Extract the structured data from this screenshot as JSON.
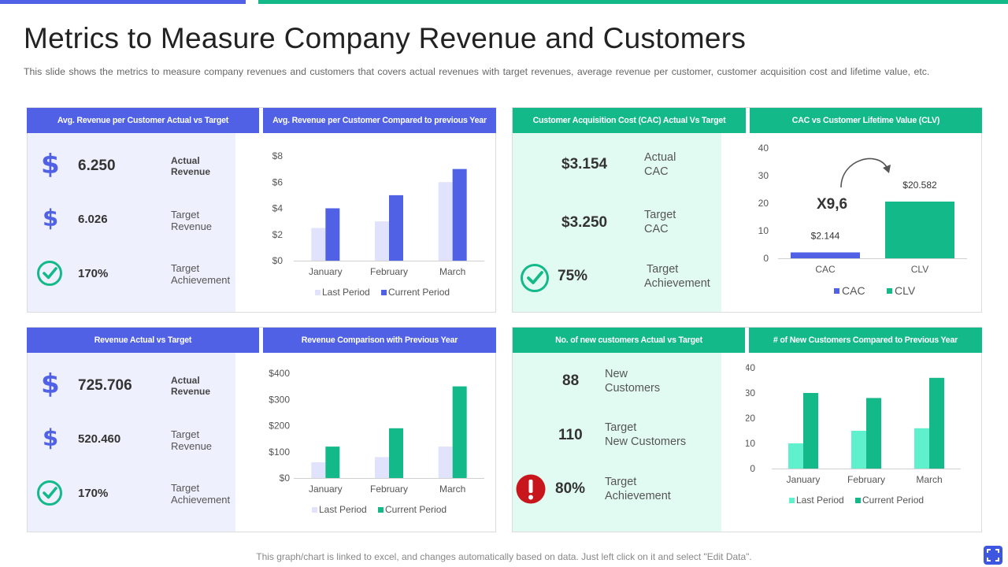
{
  "title": "Metrics to Measure Company Revenue and Customers",
  "subtitle": "This slide shows the metrics to measure company revenues  and customers that covers  actual revenues  with target revenues,  average  revenue  per customer, customer acquisition cost and lifetime value,  etc.",
  "footer": "This graph/chart is linked to excel, and changes automatically based on data. Just left click on it and select \"Edit Data\".",
  "colors": {
    "blue": "#5061e6",
    "green": "#14b98a",
    "light_blue": "#e0e3fb",
    "light_green": "#5ff0cd",
    "red": "#c8161d"
  },
  "panels": {
    "avg_rev": {
      "header_left": "Avg. Revenue per Customer Actual vs Target",
      "header_right": "Avg. Revenue per Customer Compared to previous Year",
      "k1_value": "6.250",
      "k1_label_1": "Actual",
      "k1_label_2": "Revenue",
      "k2_value": "6.026",
      "k2_label_1": "Target",
      "k2_label_2": "Revenue",
      "k3_value": "170%",
      "k3_label_1": "Target",
      "k3_label_2": "Achievement"
    },
    "cac": {
      "header_left": "Customer  Acquisition Cost (CAC) Actual Vs Target",
      "header_right": "CAC vs Customer Lifetime Value (CLV)",
      "k1_value": "$3.154",
      "k1_label_1": "Actual",
      "k1_label_2": "CAC",
      "k2_value": "$3.250",
      "k2_label_1": "Target",
      "k2_label_2": "CAC",
      "k3_value": "75%",
      "k3_label_1": "Target",
      "k3_label_2": "Achievement",
      "multiplier": "X9,6"
    },
    "rev": {
      "header_left": "Revenue Actual vs Target",
      "header_right": "Revenue Comparison with Previous Year",
      "k1_value": "725.706",
      "k1_label_1": "Actual",
      "k1_label_2": "Revenue",
      "k2_value": "520.460",
      "k2_label_1": "Target",
      "k2_label_2": "Revenue",
      "k3_value": "170%",
      "k3_label_1": "Target",
      "k3_label_2": "Achievement"
    },
    "cust": {
      "header_left": "No. of new customers Actual vs Target",
      "header_right": "# of New Customers Compared to Previous Year",
      "k1_value": "88",
      "k1_label_1": "New",
      "k1_label_2": "Customers",
      "k2_value": "110",
      "k2_label_1": "Target",
      "k2_label_2": "New Customers",
      "k3_value": "80%",
      "k3_label_1": "Target",
      "k3_label_2": "Achievement"
    }
  },
  "chart_data": [
    {
      "id": "avg_rev_chart",
      "type": "bar",
      "title": "Avg. Revenue per Customer Compared to previous Year",
      "categories": [
        "January",
        "February",
        "March"
      ],
      "series": [
        {
          "name": "Last Period",
          "values": [
            2.5,
            3,
            6
          ]
        },
        {
          "name": "Current Period",
          "values": [
            4,
            5,
            7
          ]
        }
      ],
      "yticks": [
        "$0",
        "$2",
        "$4",
        "$6",
        "$8"
      ],
      "ylim": [
        0,
        8
      ]
    },
    {
      "id": "cac_clv_chart",
      "type": "bar",
      "title": "CAC vs Customer Lifetime Value (CLV)",
      "categories": [
        "CAC",
        "CLV"
      ],
      "values": [
        2.144,
        20.582
      ],
      "data_labels": [
        "$2.144",
        "$20.582"
      ],
      "legend": [
        "CAC",
        "CLV"
      ],
      "yticks": [
        "0",
        "10",
        "20",
        "30",
        "40"
      ],
      "ylim": [
        0,
        40
      ]
    },
    {
      "id": "rev_chart",
      "type": "bar",
      "title": "Revenue Comparison with Previous Year",
      "categories": [
        "January",
        "February",
        "March"
      ],
      "series": [
        {
          "name": "Last Period",
          "values": [
            60,
            80,
            120
          ]
        },
        {
          "name": "Current Period",
          "values": [
            120,
            190,
            350
          ]
        }
      ],
      "yticks": [
        "$0",
        "$100",
        "$200",
        "$300",
        "$400"
      ],
      "ylim": [
        0,
        400
      ]
    },
    {
      "id": "cust_chart",
      "type": "bar",
      "title": "# of New Customers Compared to Previous Year",
      "categories": [
        "January",
        "February",
        "March"
      ],
      "series": [
        {
          "name": "Last Period",
          "values": [
            10,
            15,
            16
          ]
        },
        {
          "name": "Current Period",
          "values": [
            30,
            28,
            36
          ]
        }
      ],
      "yticks": [
        "0",
        "10",
        "20",
        "30",
        "40"
      ],
      "ylim": [
        0,
        40
      ]
    }
  ]
}
